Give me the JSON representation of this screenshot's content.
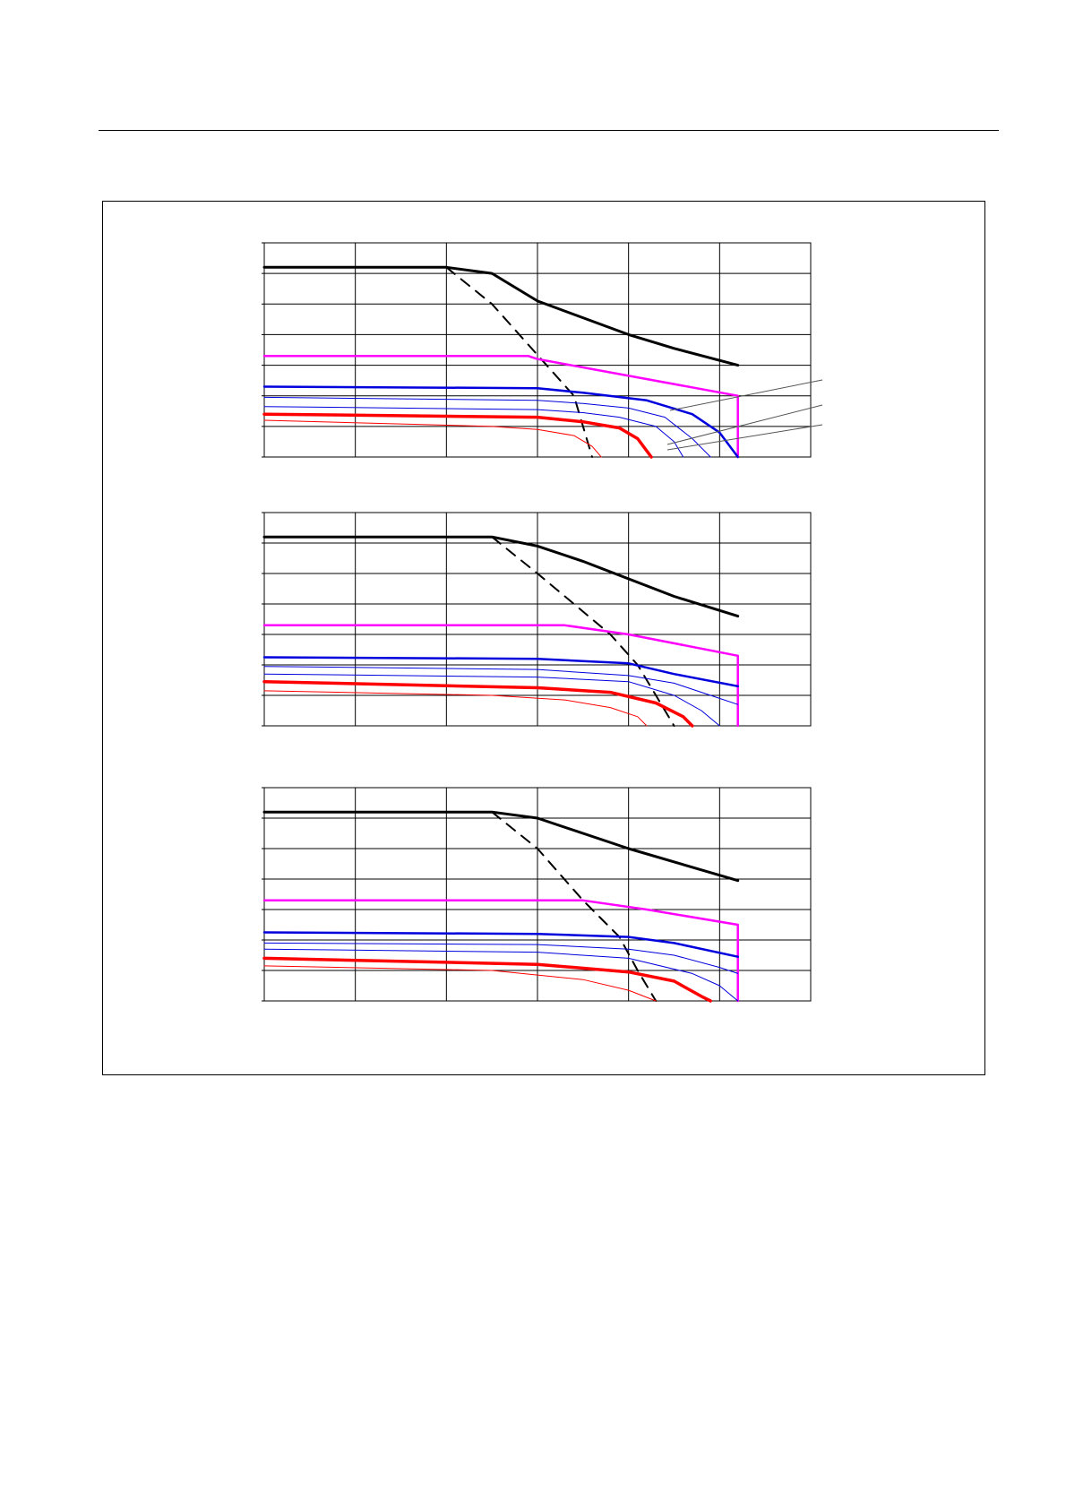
{
  "page": {
    "background": "#ffffff"
  },
  "colors": {
    "black_curve": "#000000",
    "magenta_curve": "#ff00ff",
    "blue_curve": "#0000dd",
    "red_curve": "#ff0000",
    "grid": "#000000",
    "leader": "#555555"
  },
  "chart_data": [
    {
      "type": "line",
      "xlim": [
        0,
        6
      ],
      "ylim": [
        0,
        7
      ],
      "grid": true,
      "series": [
        {
          "values": [
            [
              0,
              6.2
            ],
            [
              2,
              6.2
            ],
            [
              2.5,
              6.0
            ],
            [
              3,
              5.1
            ],
            [
              4,
              4.0
            ],
            [
              4.5,
              3.55
            ],
            [
              5.2,
              3.0
            ]
          ],
          "color": "#000000",
          "width": 3
        },
        {
          "values": [
            [
              2,
              6.2
            ],
            [
              2.5,
              5.0
            ],
            [
              2.8,
              4.0
            ],
            [
              3.1,
              3.0
            ],
            [
              3.4,
              2.0
            ],
            [
              3.6,
              0.0
            ]
          ],
          "color": "#000000",
          "width": 2,
          "dashed": true
        },
        {
          "values": [
            [
              0,
              3.3
            ],
            [
              2.9,
              3.3
            ],
            [
              3,
              3.2
            ],
            [
              5.2,
              2.0
            ],
            [
              5.2,
              0.0
            ]
          ],
          "color": "#ff00ff",
          "width": 2.5
        },
        {
          "values": [
            [
              0,
              2.3
            ],
            [
              3,
              2.25
            ],
            [
              3.5,
              2.1
            ],
            [
              4.2,
              1.85
            ],
            [
              4.7,
              1.4
            ],
            [
              5.0,
              0.8
            ],
            [
              5.2,
              0.0
            ]
          ],
          "color": "#0000dd",
          "width": 2.5
        },
        {
          "values": [
            [
              0,
              1.95
            ],
            [
              3,
              1.85
            ],
            [
              3.5,
              1.75
            ],
            [
              4.0,
              1.6
            ],
            [
              4.4,
              1.3
            ],
            [
              4.7,
              0.6
            ],
            [
              4.9,
              0.0
            ]
          ],
          "color": "#0000dd",
          "width": 1
        },
        {
          "values": [
            [
              0,
              1.65
            ],
            [
              3,
              1.55
            ],
            [
              3.5,
              1.45
            ],
            [
              3.9,
              1.3
            ],
            [
              4.3,
              1.0
            ],
            [
              4.5,
              0.5
            ],
            [
              4.6,
              0.0
            ]
          ],
          "color": "#0000dd",
          "width": 1
        },
        {
          "values": [
            [
              0,
              1.4
            ],
            [
              3,
              1.3
            ],
            [
              3.5,
              1.15
            ],
            [
              3.9,
              0.95
            ],
            [
              4.1,
              0.6
            ],
            [
              4.25,
              0.0
            ]
          ],
          "color": "#ff0000",
          "width": 3.5
        },
        {
          "values": [
            [
              0,
              1.2
            ],
            [
              2.5,
              1.0
            ],
            [
              3.0,
              0.9
            ],
            [
              3.4,
              0.7
            ],
            [
              3.6,
              0.35
            ],
            [
              3.7,
              0.0
            ]
          ],
          "color": "#ff0000",
          "width": 1
        }
      ]
    },
    {
      "type": "line",
      "xlim": [
        0,
        6
      ],
      "ylim": [
        0,
        7
      ],
      "grid": true,
      "series": [
        {
          "values": [
            [
              0,
              6.2
            ],
            [
              2.5,
              6.2
            ],
            [
              3,
              5.9
            ],
            [
              3.5,
              5.4
            ],
            [
              4.5,
              4.25
            ],
            [
              5.2,
              3.6
            ]
          ],
          "color": "#000000",
          "width": 3
        },
        {
          "values": [
            [
              2.5,
              6.2
            ],
            [
              3.0,
              5.0
            ],
            [
              3.4,
              4.0
            ],
            [
              3.8,
              3.0
            ],
            [
              4.1,
              2.0
            ],
            [
              4.3,
              1.0
            ],
            [
              4.5,
              0.0
            ]
          ],
          "color": "#000000",
          "width": 2,
          "dashed": true
        },
        {
          "values": [
            [
              0,
              3.3
            ],
            [
              3.3,
              3.3
            ],
            [
              4,
              3.0
            ],
            [
              5.2,
              2.3
            ],
            [
              5.2,
              0.0
            ]
          ],
          "color": "#ff00ff",
          "width": 2.5
        },
        {
          "values": [
            [
              0,
              2.25
            ],
            [
              3,
              2.2
            ],
            [
              4,
              2.05
            ],
            [
              4.5,
              1.7
            ],
            [
              5.2,
              1.3
            ]
          ],
          "color": "#0000dd",
          "width": 2.5
        },
        {
          "values": [
            [
              0,
              1.95
            ],
            [
              3,
              1.85
            ],
            [
              4,
              1.65
            ],
            [
              4.5,
              1.4
            ],
            [
              5.0,
              0.9
            ],
            [
              5.2,
              0.7
            ]
          ],
          "color": "#0000dd",
          "width": 1
        },
        {
          "values": [
            [
              0,
              1.7
            ],
            [
              3,
              1.6
            ],
            [
              4,
              1.45
            ],
            [
              4.5,
              1.0
            ],
            [
              4.8,
              0.5
            ],
            [
              5.0,
              0.0
            ]
          ],
          "color": "#0000dd",
          "width": 1
        },
        {
          "values": [
            [
              0,
              1.45
            ],
            [
              3,
              1.25
            ],
            [
              3.8,
              1.1
            ],
            [
              4.3,
              0.75
            ],
            [
              4.6,
              0.3
            ],
            [
              4.7,
              0.0
            ]
          ],
          "color": "#ff0000",
          "width": 3.5
        },
        {
          "values": [
            [
              0,
              1.15
            ],
            [
              2.5,
              1.0
            ],
            [
              3.3,
              0.85
            ],
            [
              3.8,
              0.6
            ],
            [
              4.1,
              0.3
            ],
            [
              4.2,
              0.0
            ]
          ],
          "color": "#ff0000",
          "width": 1
        }
      ]
    },
    {
      "type": "line",
      "xlim": [
        0,
        6
      ],
      "ylim": [
        0,
        7
      ],
      "grid": true,
      "series": [
        {
          "values": [
            [
              0,
              6.2
            ],
            [
              2.5,
              6.2
            ],
            [
              3,
              6.0
            ],
            [
              4,
              5.0
            ],
            [
              5.2,
              3.95
            ]
          ],
          "color": "#000000",
          "width": 3
        },
        {
          "values": [
            [
              2.5,
              6.2
            ],
            [
              3.0,
              5.0
            ],
            [
              3.5,
              3.3
            ],
            [
              3.9,
              2.1
            ],
            [
              4.1,
              1.0
            ],
            [
              4.3,
              0.0
            ]
          ],
          "color": "#000000",
          "width": 2,
          "dashed": true
        },
        {
          "values": [
            [
              0,
              3.3
            ],
            [
              3.5,
              3.3
            ],
            [
              4.2,
              3.0
            ],
            [
              5.2,
              2.5
            ],
            [
              5.2,
              0.0
            ]
          ],
          "color": "#ff00ff",
          "width": 2.5
        },
        {
          "values": [
            [
              0,
              2.25
            ],
            [
              3,
              2.2
            ],
            [
              4,
              2.1
            ],
            [
              4.5,
              1.9
            ],
            [
              5.2,
              1.45
            ]
          ],
          "color": "#0000dd",
          "width": 2.5
        },
        {
          "values": [
            [
              0,
              1.9
            ],
            [
              3,
              1.85
            ],
            [
              4,
              1.7
            ],
            [
              4.5,
              1.5
            ],
            [
              5.0,
              1.1
            ],
            [
              5.2,
              0.9
            ]
          ],
          "color": "#0000dd",
          "width": 1
        },
        {
          "values": [
            [
              0,
              1.7
            ],
            [
              3,
              1.6
            ],
            [
              4,
              1.4
            ],
            [
              4.7,
              0.9
            ],
            [
              5.0,
              0.5
            ],
            [
              5.2,
              0.0
            ]
          ],
          "color": "#0000dd",
          "width": 1
        },
        {
          "values": [
            [
              0,
              1.4
            ],
            [
              3,
              1.2
            ],
            [
              4,
              0.95
            ],
            [
              4.5,
              0.65
            ],
            [
              4.8,
              0.15
            ],
            [
              4.9,
              0.0
            ]
          ],
          "color": "#ff0000",
          "width": 3.5
        },
        {
          "values": [
            [
              0,
              1.15
            ],
            [
              2.5,
              1.0
            ],
            [
              3.5,
              0.7
            ],
            [
              4.0,
              0.35
            ],
            [
              4.3,
              0.0
            ]
          ],
          "color": "#ff0000",
          "width": 1
        }
      ]
    }
  ]
}
